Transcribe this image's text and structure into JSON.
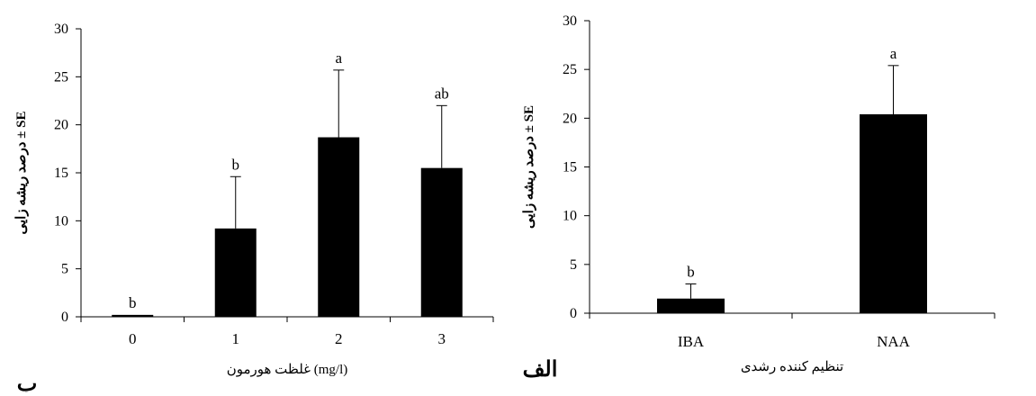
{
  "chart_data": [
    {
      "type": "bar",
      "panel_label": "ب",
      "categories": [
        "0",
        "1",
        "2",
        "3"
      ],
      "values": [
        0.2,
        9.2,
        18.7,
        15.5
      ],
      "errors": [
        0,
        5.4,
        7.0,
        6.5
      ],
      "significance": [
        "b",
        "b",
        "a",
        "ab"
      ],
      "xlabel": "غلظت هورمون (mg/l)",
      "ylabel": "درصد ریشه زایی ± SE",
      "ylim": [
        0,
        30
      ],
      "yticks": [
        0,
        5,
        10,
        15,
        20,
        25,
        30
      ],
      "grid": false,
      "bar_color": "#000000"
    },
    {
      "type": "bar",
      "panel_label": "الف",
      "categories": [
        "IBA",
        "NAA"
      ],
      "values": [
        1.5,
        20.4
      ],
      "errors": [
        1.5,
        5.0
      ],
      "significance": [
        "b",
        "a"
      ],
      "xlabel": "تنظیم کننده رشدی",
      "ylabel": "درصد ریشه زایی ± SE",
      "ylim": [
        0,
        30
      ],
      "yticks": [
        0,
        5,
        10,
        15,
        20,
        25,
        30
      ],
      "grid": false,
      "bar_color": "#000000"
    }
  ]
}
